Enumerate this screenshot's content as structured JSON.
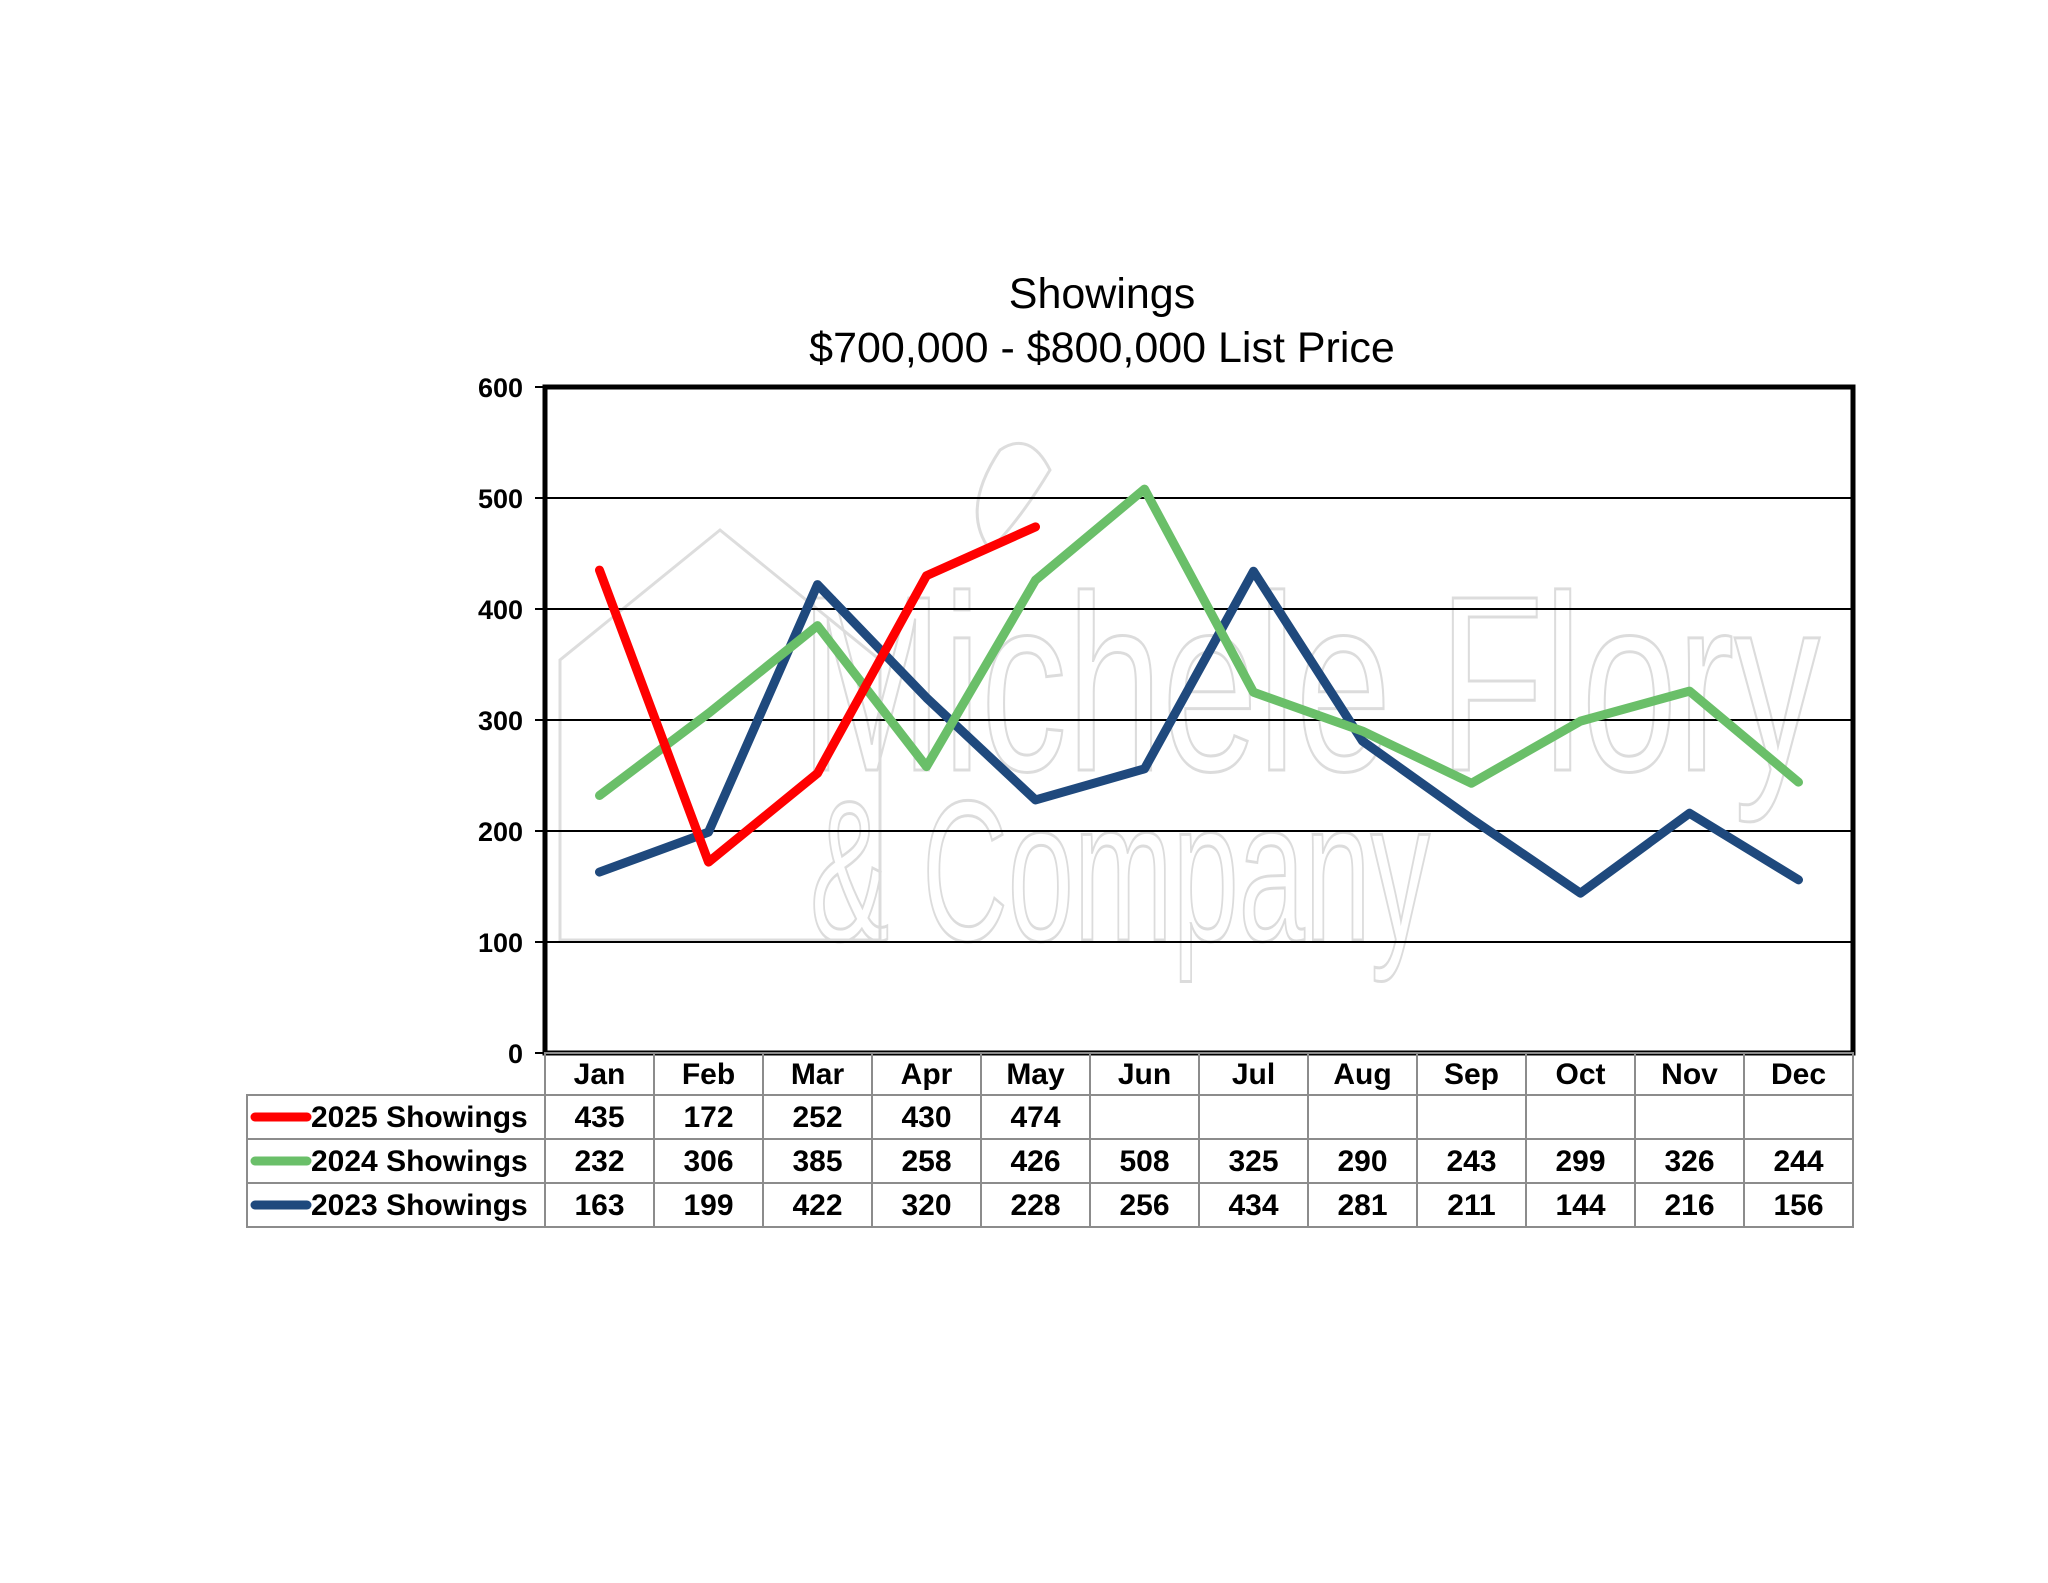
{
  "chart_data": {
    "type": "line",
    "title": "Showings",
    "subtitle": "$700,000 - $800,000 List Price",
    "categories": [
      "Jan",
      "Feb",
      "Mar",
      "Apr",
      "May",
      "Jun",
      "Jul",
      "Aug",
      "Sep",
      "Oct",
      "Nov",
      "Dec"
    ],
    "ylim": [
      0,
      600
    ],
    "yticks": [
      0,
      100,
      200,
      300,
      400,
      500,
      600
    ],
    "grid": true,
    "legend": "data-table-bottom",
    "series": [
      {
        "name": "2025 Showings",
        "color": "#ff0000",
        "values": [
          435,
          172,
          252,
          430,
          474,
          null,
          null,
          null,
          null,
          null,
          null,
          null
        ]
      },
      {
        "name": "2024 Showings",
        "color": "#6abf69",
        "values": [
          232,
          306,
          385,
          258,
          426,
          508,
          325,
          290,
          243,
          299,
          326,
          244
        ]
      },
      {
        "name": "2023 Showings",
        "color": "#1f497d",
        "values": [
          163,
          199,
          422,
          320,
          228,
          256,
          434,
          281,
          211,
          144,
          216,
          156
        ]
      }
    ]
  },
  "watermark": {
    "line1": "Michele Flory",
    "line2": "& Company"
  }
}
